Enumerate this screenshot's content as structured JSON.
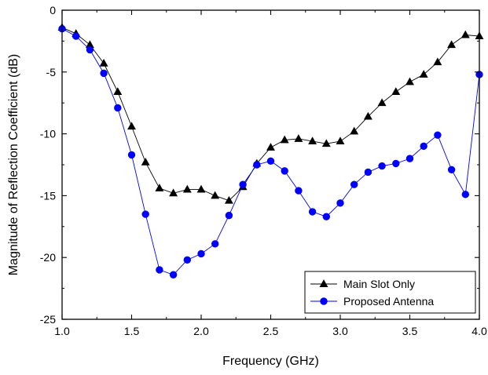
{
  "chart_data": {
    "type": "line",
    "title": "",
    "xlabel": "Frequency (GHz)",
    "ylabel": "Magnitude of Reflection Coefficient (dB)",
    "xlim": [
      1.0,
      4.0
    ],
    "ylim": [
      -25,
      0
    ],
    "x_ticks": [
      1.0,
      1.5,
      2.0,
      2.5,
      3.0,
      3.5,
      4.0
    ],
    "x_tick_labels": [
      "1.0",
      "1.5",
      "2.0",
      "2.5",
      "3.0",
      "3.5",
      "4.0"
    ],
    "y_ticks": [
      0,
      -5,
      -10,
      -15,
      -20,
      -25
    ],
    "y_tick_labels": [
      "0",
      "-5",
      "-10",
      "-15",
      "-20",
      "-25"
    ],
    "grid": false,
    "legend_position": "bottom-right",
    "series": [
      {
        "name": "Main Slot Only",
        "color": "#000000",
        "marker": "triangle",
        "x": [
          1.0,
          1.1,
          1.2,
          1.3,
          1.4,
          1.5,
          1.6,
          1.7,
          1.8,
          1.9,
          2.0,
          2.1,
          2.2,
          2.3,
          2.4,
          2.5,
          2.6,
          2.7,
          2.8,
          2.9,
          3.0,
          3.1,
          3.2,
          3.3,
          3.4,
          3.5,
          3.6,
          3.7,
          3.8,
          3.9,
          4.0
        ],
        "y": [
          -1.4,
          -1.9,
          -2.8,
          -4.3,
          -6.6,
          -9.4,
          -12.3,
          -14.4,
          -14.8,
          -14.5,
          -14.5,
          -15.0,
          -15.4,
          -14.3,
          -12.4,
          -11.1,
          -10.5,
          -10.4,
          -10.6,
          -10.8,
          -10.6,
          -9.8,
          -8.6,
          -7.5,
          -6.6,
          -5.8,
          -5.2,
          -4.2,
          -2.8,
          -2.0,
          -2.1
        ]
      },
      {
        "name": "Proposed Antenna",
        "color": "#0000ff",
        "marker": "circle",
        "x": [
          1.0,
          1.1,
          1.2,
          1.3,
          1.4,
          1.5,
          1.6,
          1.7,
          1.8,
          1.9,
          2.0,
          2.1,
          2.2,
          2.3,
          2.4,
          2.5,
          2.6,
          2.7,
          2.8,
          2.9,
          3.0,
          3.1,
          3.2,
          3.3,
          3.4,
          3.5,
          3.6,
          3.7,
          3.8,
          3.9,
          4.0
        ],
        "y": [
          -1.5,
          -2.1,
          -3.2,
          -5.1,
          -7.9,
          -11.7,
          -16.5,
          -21.0,
          -21.4,
          -20.2,
          -19.7,
          -18.9,
          -16.6,
          -14.1,
          -12.5,
          -12.2,
          -13.0,
          -14.6,
          -16.3,
          -16.7,
          -15.6,
          -14.1,
          -13.1,
          -12.6,
          -12.4,
          -12.0,
          -11.0,
          -10.1,
          -12.9,
          -14.9,
          -5.2
        ]
      }
    ]
  }
}
